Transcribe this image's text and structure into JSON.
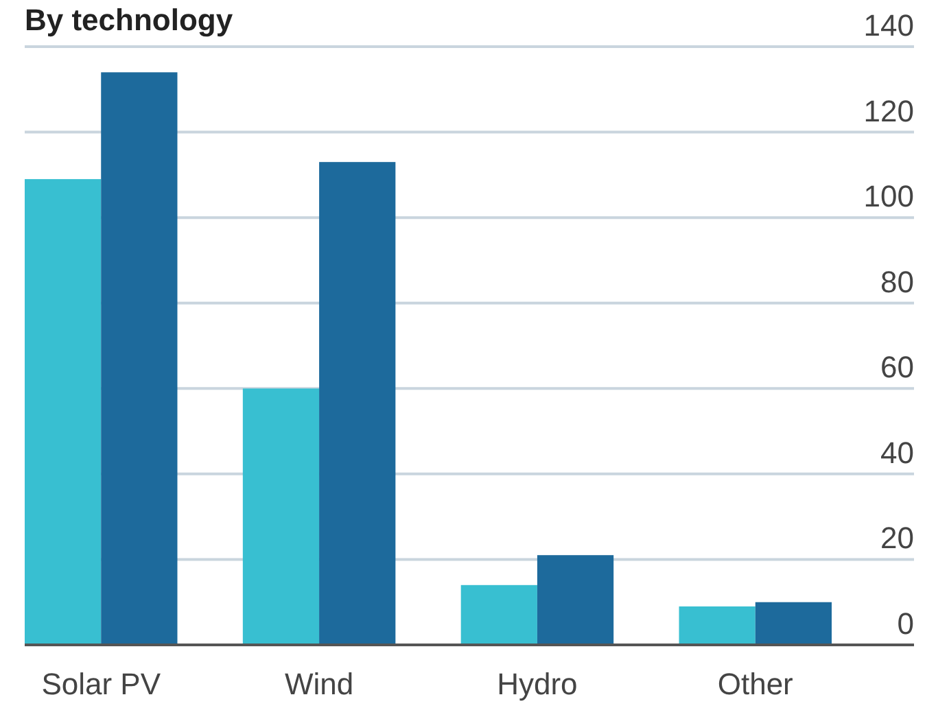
{
  "chart_data": {
    "type": "bar",
    "title": "By technology",
    "categories": [
      "Solar PV",
      "Wind",
      "Hydro",
      "Other"
    ],
    "series": [
      {
        "color": "#38bfd1",
        "values": [
          109,
          60,
          14,
          9
        ]
      },
      {
        "color": "#1d6a9c",
        "values": [
          134,
          113,
          21,
          10
        ]
      }
    ],
    "ylim": [
      0,
      140
    ],
    "yticks": [
      0,
      20,
      40,
      60,
      80,
      100,
      120,
      140
    ],
    "grid": "y"
  }
}
